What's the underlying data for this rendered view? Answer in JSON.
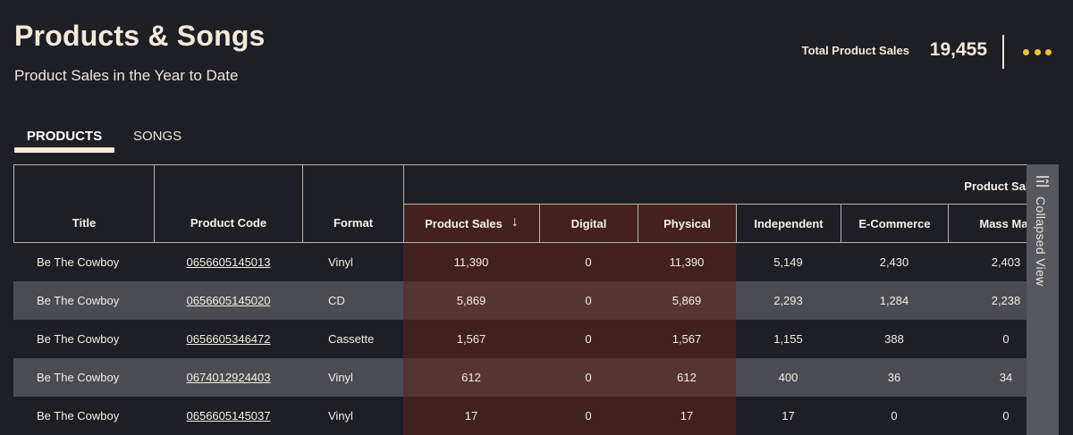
{
  "header": {
    "title": "Products & Songs",
    "subtitle": "Product Sales in the Year to Date",
    "kpi_label": "Total Product Sales",
    "kpi_value": "19,455",
    "more_icon": "more-horizontal-icon"
  },
  "tabs": [
    {
      "label": "PRODUCTS",
      "active": true
    },
    {
      "label": "SONGS",
      "active": false
    }
  ],
  "table": {
    "group_header": "Product Sales",
    "columns": {
      "title": "Title",
      "product_code": "Product Code",
      "format": "Format",
      "product_sales": "Product Sales",
      "digital": "Digital",
      "physical": "Physical",
      "independent": "Independent",
      "ecommerce": "E-Commerce",
      "mass_market": "Mass Mar"
    },
    "rows": [
      {
        "title": "Be The Cowboy",
        "code": "0656605145013",
        "format": "Vinyl",
        "sales": "11,390",
        "digital": "0",
        "physical": "11,390",
        "independent": "5,149",
        "ecommerce": "2,430",
        "mass": "2,403"
      },
      {
        "title": "Be The Cowboy",
        "code": "0656605145020",
        "format": "CD",
        "sales": "5,869",
        "digital": "0",
        "physical": "5,869",
        "independent": "2,293",
        "ecommerce": "1,284",
        "mass": "2,238"
      },
      {
        "title": "Be The Cowboy",
        "code": "0656605346472",
        "format": "Cassette",
        "sales": "1,567",
        "digital": "0",
        "physical": "1,567",
        "independent": "1,155",
        "ecommerce": "388",
        "mass": "0"
      },
      {
        "title": "Be The Cowboy",
        "code": "0674012924403",
        "format": "Vinyl",
        "sales": "612",
        "digital": "0",
        "physical": "612",
        "independent": "400",
        "ecommerce": "36",
        "mass": "34"
      },
      {
        "title": "Be The Cowboy",
        "code": "0656605145037",
        "format": "Vinyl",
        "sales": "17",
        "digital": "0",
        "physical": "17",
        "independent": "17",
        "ecommerce": "0",
        "mass": "0"
      }
    ]
  },
  "side_panel": {
    "label": "Collapsed View"
  },
  "colors": {
    "background": "#1e1f24",
    "accent_dots": "#f2c230",
    "highlight_header": "#42211f",
    "alt_row": "#4a4c51"
  }
}
